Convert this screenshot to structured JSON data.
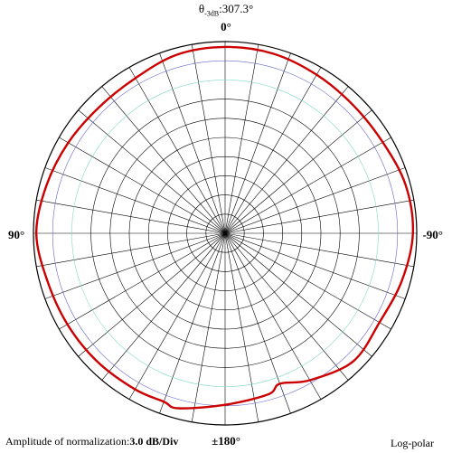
{
  "chart_data": {
    "type": "polar",
    "scale": "log-polar",
    "title_prefix": "θ",
    "title_sub": "-3dB",
    "title_value": ":307.3°",
    "angle_labels": {
      "top": "0°",
      "right": "-90°",
      "bottom": "±180°",
      "left": "90°"
    },
    "footer_prefix": "Amplitude of normalization:",
    "footer_value": "3.0 dB/Div",
    "mode_label": "Log-polar",
    "rings": 10,
    "spokes_deg_step": 10,
    "reference_rings": [
      {
        "ring": 9,
        "color": "#6666cc"
      },
      {
        "ring": 8,
        "color": "#7fd8c8"
      }
    ],
    "series": [
      {
        "color": "#cc0000",
        "angle_deg": [
          0,
          15,
          30,
          45,
          60,
          75,
          90,
          105,
          120,
          135,
          150,
          160,
          165,
          180,
          195,
          200,
          210,
          225,
          240,
          255,
          270,
          285,
          300,
          315,
          330,
          345
        ],
        "radius_ring": [
          9.72,
          9.65,
          9.35,
          9.3,
          9.45,
          9.65,
          9.85,
          9.6,
          9.5,
          9.45,
          9.4,
          9.35,
          9.45,
          8.95,
          8.7,
          8.35,
          8.85,
          9.45,
          9.3,
          9.55,
          9.8,
          9.75,
          9.5,
          9.45,
          9.55,
          9.7
        ]
      }
    ]
  }
}
